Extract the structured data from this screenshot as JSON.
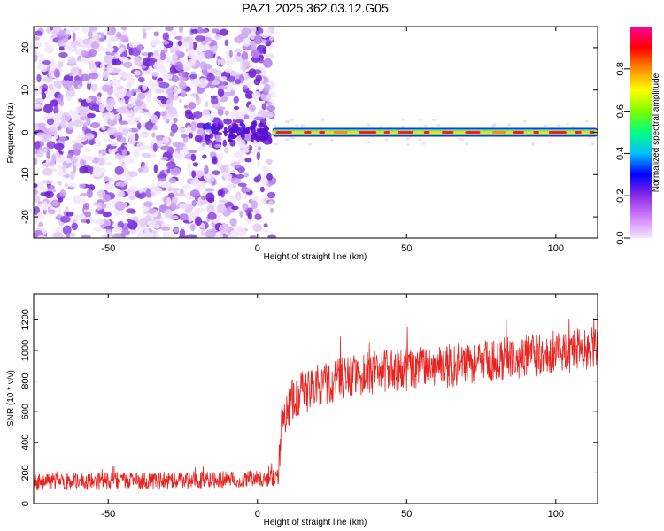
{
  "figure_title": "PAZ1.2025.362.03.12.G05",
  "colors": {
    "snr_line": "#e8231f",
    "scatter_palette": [
      "#f2e6fb",
      "#e2c9f7",
      "#cda6f1",
      "#b07ae8",
      "#8a45de",
      "#6f1fd6"
    ],
    "colorbar": [
      "#f5e6ff",
      "#cf7fff",
      "#8a2be2",
      "#0000ff",
      "#00bfff",
      "#00ff7f",
      "#7fff00",
      "#ffff00",
      "#ff8c00",
      "#ff0000",
      "#ff0099"
    ]
  },
  "chart_data": [
    {
      "type": "heatmap",
      "title": "PAZ1.2025.362.03.12.G05",
      "xlabel": "Height of straight line (km)",
      "ylabel": "Frequency (Hz)",
      "xlim": [
        -75,
        114
      ],
      "ylim": [
        -25,
        25
      ],
      "x_ticks": [
        -50,
        0,
        50,
        100
      ],
      "y_ticks": [
        -20,
        -10,
        0,
        10,
        20
      ],
      "x_tick_labels": [
        "-50",
        "0",
        "50",
        "100"
      ],
      "y_tick_labels": [
        "-20",
        "-10",
        "0",
        "10",
        "20"
      ],
      "noise_region_x": [
        -75,
        5
      ],
      "signal_line": {
        "x_start": 5,
        "x_end": 114,
        "frequency": 0,
        "amplitude": 0.9
      },
      "colorbar": {
        "label": "Normalized spectral amplitude",
        "range": [
          0.0,
          1.0
        ],
        "ticks": [
          0.0,
          0.2,
          0.4,
          0.6,
          0.8
        ],
        "tick_labels": [
          "0.0",
          "0.2",
          "0.4",
          "0.6",
          "0.8"
        ]
      }
    },
    {
      "type": "line",
      "xlabel": "Height of straight line (km)",
      "ylabel": "SNR (10 * v/v)",
      "xlim": [
        -75,
        114
      ],
      "ylim": [
        0,
        1370
      ],
      "x_ticks": [
        -50,
        0,
        50,
        100
      ],
      "y_ticks": [
        0,
        200,
        400,
        600,
        800,
        1000,
        1200
      ],
      "x_tick_labels": [
        "-50",
        "0",
        "50",
        "100"
      ],
      "y_tick_labels": [
        "0",
        "200",
        "400",
        "600",
        "800",
        "1000",
        "1200"
      ],
      "series": [
        {
          "name": "SNR",
          "trend_x": [
            -75,
            -40,
            0,
            7,
            8,
            12,
            20,
            30,
            40,
            50,
            60,
            70,
            80,
            90,
            100,
            114
          ],
          "trend_y": [
            140,
            150,
            160,
            170,
            560,
            680,
            770,
            820,
            860,
            880,
            890,
            910,
            940,
            960,
            990,
            1010
          ]
        }
      ]
    }
  ]
}
